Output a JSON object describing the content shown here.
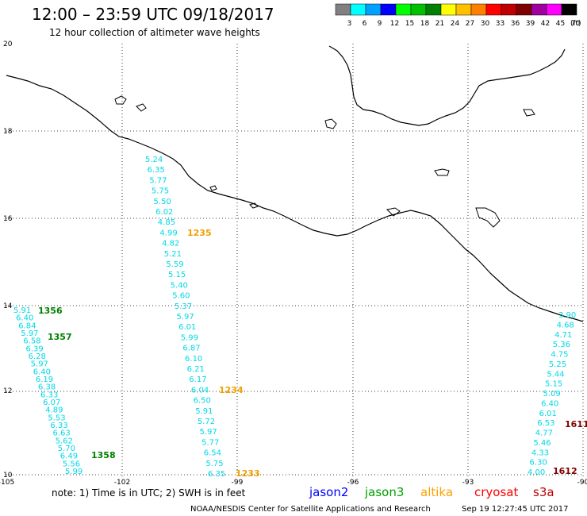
{
  "header": {
    "title": "12:00 – 23:59 UTC 09/18/2017",
    "subtitle": "12 hour collection of altimeter wave heights"
  },
  "legend": {
    "unit": "(ft)",
    "bins": [
      {
        "label": "3",
        "color": "#808080"
      },
      {
        "label": "6",
        "color": "#00ffff"
      },
      {
        "label": "9",
        "color": "#00a0ff"
      },
      {
        "label": "12",
        "color": "#0000ff"
      },
      {
        "label": "15",
        "color": "#00ff00"
      },
      {
        "label": "18",
        "color": "#00c000"
      },
      {
        "label": "21",
        "color": "#008000"
      },
      {
        "label": "24",
        "color": "#ffff00"
      },
      {
        "label": "27",
        "color": "#ffc000"
      },
      {
        "label": "30",
        "color": "#ff8000"
      },
      {
        "label": "33",
        "color": "#ff0000"
      },
      {
        "label": "36",
        "color": "#c00000"
      },
      {
        "label": "39",
        "color": "#800000"
      },
      {
        "label": "42",
        "color": "#a000a0"
      },
      {
        "label": "45",
        "color": "#ff00ff"
      },
      {
        "label": "70",
        "color": "#000000"
      }
    ]
  },
  "axes": {
    "lat_labels": [
      "20",
      "18",
      "16",
      "14",
      "12",
      "10"
    ],
    "lon_labels": [
      "-105",
      "-102",
      "-99",
      "-96",
      "-93",
      "-90"
    ],
    "lon_range": [
      -105,
      -90
    ],
    "lat_range": [
      10,
      20
    ],
    "grid": "dotted"
  },
  "tracks": [
    {
      "name": "track-center",
      "color": "#00d8e8",
      "values": [
        "5.24",
        "6.35",
        "5.77",
        "5.75",
        "5.50",
        "6.02",
        "4.85",
        "4.99",
        "4.82",
        "5.21",
        "5.59",
        "5.15",
        "5.40",
        "5.60",
        "5.37",
        "5.97",
        "6.01",
        "5.99",
        "6.87",
        "6.10",
        "6.21",
        "6.17",
        "6.04",
        "6.50",
        "5.91",
        "5.72",
        "5.97",
        "5.77",
        "6.54",
        "5.75",
        "6.35"
      ]
    },
    {
      "name": "track-right",
      "color": "#00d8e8",
      "values": [
        "3.90",
        "4.68",
        "4.71",
        "5.36",
        "4.75",
        "5.25",
        "5.44",
        "5.15",
        "5.09",
        "6.40",
        "6.01",
        "6.53",
        "4.77",
        "5.46",
        "4.33",
        "6.30",
        "4.00"
      ]
    },
    {
      "name": "track-left",
      "color": "#00d8e8",
      "values": [
        "5.91",
        "6.40",
        "6.84",
        "5.97",
        "6.58",
        "6.39",
        "6.28",
        "5.97",
        "6.40",
        "6.19",
        "6.38",
        "6.33",
        "6.07",
        "4.89",
        "5.53",
        "6.33",
        "6.63",
        "5.62",
        "5.70",
        "6.49",
        "5.56",
        "5.99"
      ]
    }
  ],
  "time_labels": [
    {
      "text": "1235",
      "color": "#f0a000"
    },
    {
      "text": "1234",
      "color": "#f0a000"
    },
    {
      "text": "1233",
      "color": "#f0a000"
    },
    {
      "text": "1356",
      "color": "#008000"
    },
    {
      "text": "1357",
      "color": "#008000"
    },
    {
      "text": "1358",
      "color": "#008000"
    },
    {
      "text": "1611",
      "color": "#800000"
    },
    {
      "text": "1612",
      "color": "#800000"
    }
  ],
  "note": "note:  1) Time is in UTC;  2) SWH is in feet",
  "missions": [
    {
      "name": "jason2",
      "color": "#0000ff"
    },
    {
      "name": "jason3",
      "color": "#00a000"
    },
    {
      "name": "altika",
      "color": "#ffa000"
    },
    {
      "name": "cryosat",
      "color": "#ff0000"
    },
    {
      "name": "s3a",
      "color": "#c00000"
    }
  ],
  "footer": {
    "agency": "NOAA/NESDIS Center for Satellite Applications and Research",
    "timestamp": "Sep 19 12:27:45 UTC 2017"
  }
}
